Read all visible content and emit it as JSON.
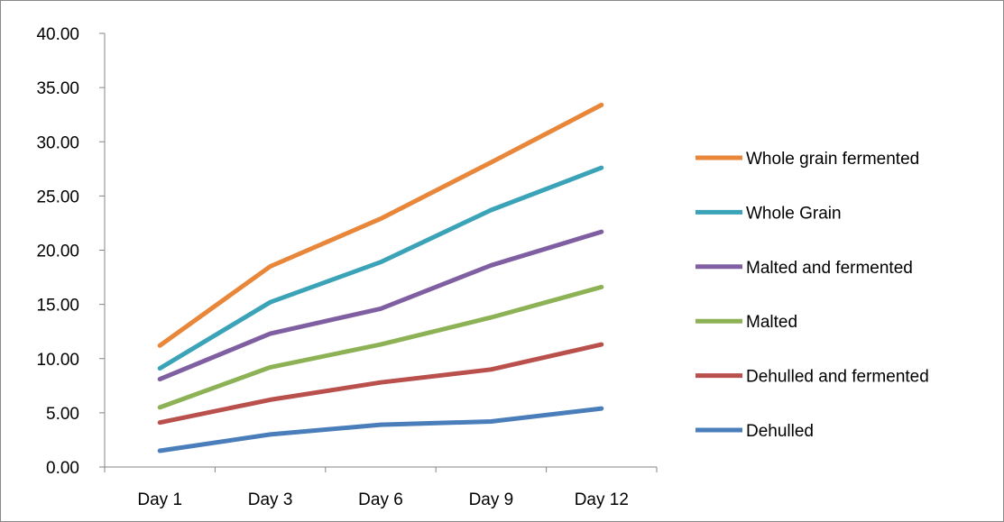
{
  "chart_data": {
    "type": "line",
    "title": "",
    "xlabel": "",
    "ylabel": "",
    "categories": [
      "Day 1",
      "Day 3",
      "Day 6",
      "Day 9",
      "Day 12"
    ],
    "ylim": [
      0,
      40
    ],
    "yticks": [
      "0.00",
      "5.00",
      "10.00",
      "15.00",
      "20.00",
      "25.00",
      "30.00",
      "35.00",
      "40.00"
    ],
    "grid": false,
    "legend_position": "right",
    "series": [
      {
        "name": "Whole grain fermented",
        "color": "#E8873A",
        "values": [
          11.2,
          18.5,
          22.9,
          28.1,
          33.4
        ]
      },
      {
        "name": "Whole Grain",
        "color": "#3BA3B8",
        "values": [
          9.1,
          15.2,
          18.9,
          23.7,
          27.6
        ]
      },
      {
        "name": "Malted and fermented",
        "color": "#7F5FA1",
        "values": [
          8.1,
          12.3,
          14.6,
          18.6,
          21.7
        ]
      },
      {
        "name": "Malted",
        "color": "#8DB255",
        "values": [
          5.5,
          9.2,
          11.3,
          13.8,
          16.6
        ]
      },
      {
        "name": "Dehulled and fermented",
        "color": "#B9504C",
        "values": [
          4.1,
          6.2,
          7.8,
          9.0,
          11.3
        ]
      },
      {
        "name": "Dehulled",
        "color": "#4A7EBB",
        "values": [
          1.5,
          3.0,
          3.9,
          4.2,
          5.4
        ]
      }
    ]
  }
}
